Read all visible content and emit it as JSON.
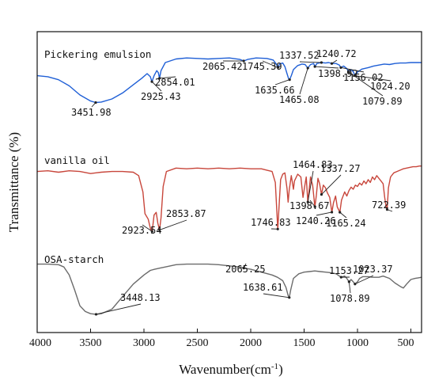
{
  "chart_data": {
    "type": "line",
    "xlabel": "Wavenumber(cm",
    "xlabel_sup": "-1",
    "xlabel_suffix": ")",
    "ylabel": "Transmittance (%)",
    "xlim": [
      4000,
      400
    ],
    "x_reversed": true,
    "x_ticks": [
      4000,
      3500,
      3000,
      2500,
      2000,
      1500,
      1000,
      500
    ],
    "y_ticks_shown": false,
    "series": [
      {
        "name": "Pickering emulsion",
        "color": "#1f5fd6",
        "points": [
          [
            4000,
            0.4
          ],
          [
            3900,
            0.42
          ],
          [
            3800,
            0.48
          ],
          [
            3700,
            0.6
          ],
          [
            3600,
            0.78
          ],
          [
            3500,
            0.9
          ],
          [
            3452,
            0.93
          ],
          [
            3400,
            0.92
          ],
          [
            3300,
            0.86
          ],
          [
            3200,
            0.74
          ],
          [
            3100,
            0.58
          ],
          [
            3020,
            0.45
          ],
          [
            2970,
            0.36
          ],
          [
            2940,
            0.42
          ],
          [
            2925,
            0.52
          ],
          [
            2905,
            0.4
          ],
          [
            2880,
            0.3
          ],
          [
            2865,
            0.34
          ],
          [
            2854,
            0.45
          ],
          [
            2840,
            0.3
          ],
          [
            2800,
            0.14
          ],
          [
            2700,
            0.07
          ],
          [
            2600,
            0.05
          ],
          [
            2500,
            0.06
          ],
          [
            2400,
            0.07
          ],
          [
            2300,
            0.06
          ],
          [
            2200,
            0.05
          ],
          [
            2100,
            0.08
          ],
          [
            2065,
            0.11
          ],
          [
            2030,
            0.08
          ],
          [
            1950,
            0.05
          ],
          [
            1850,
            0.06
          ],
          [
            1790,
            0.09
          ],
          [
            1760,
            0.17
          ],
          [
            1745,
            0.24
          ],
          [
            1730,
            0.17
          ],
          [
            1700,
            0.15
          ],
          [
            1680,
            0.22
          ],
          [
            1660,
            0.36
          ],
          [
            1645,
            0.46
          ],
          [
            1636,
            0.48
          ],
          [
            1620,
            0.4
          ],
          [
            1600,
            0.28
          ],
          [
            1560,
            0.2
          ],
          [
            1520,
            0.17
          ],
          [
            1490,
            0.18
          ],
          [
            1465,
            0.25
          ],
          [
            1440,
            0.18
          ],
          [
            1410,
            0.16
          ],
          [
            1399,
            0.22
          ],
          [
            1380,
            0.16
          ],
          [
            1338,
            0.14
          ],
          [
            1300,
            0.15
          ],
          [
            1270,
            0.14
          ],
          [
            1241,
            0.16
          ],
          [
            1200,
            0.16
          ],
          [
            1170,
            0.19
          ],
          [
            1156,
            0.24
          ],
          [
            1130,
            0.21
          ],
          [
            1100,
            0.26
          ],
          [
            1080,
            0.33
          ],
          [
            1060,
            0.28
          ],
          [
            1040,
            0.32
          ],
          [
            1024,
            0.4
          ],
          [
            1000,
            0.33
          ],
          [
            960,
            0.27
          ],
          [
            900,
            0.24
          ],
          [
            850,
            0.21
          ],
          [
            800,
            0.19
          ],
          [
            750,
            0.17
          ],
          [
            700,
            0.18
          ],
          [
            650,
            0.16
          ],
          [
            600,
            0.15
          ],
          [
            550,
            0.15
          ],
          [
            500,
            0.14
          ],
          [
            450,
            0.14
          ],
          [
            400,
            0.14
          ]
        ]
      },
      {
        "name": "vanilla oil",
        "color": "#c8463b",
        "points": [
          [
            4000,
            0.1
          ],
          [
            3900,
            0.09
          ],
          [
            3800,
            0.11
          ],
          [
            3700,
            0.09
          ],
          [
            3600,
            0.1
          ],
          [
            3500,
            0.13
          ],
          [
            3450,
            0.12
          ],
          [
            3400,
            0.11
          ],
          [
            3300,
            0.1
          ],
          [
            3200,
            0.1
          ],
          [
            3100,
            0.11
          ],
          [
            3050,
            0.16
          ],
          [
            3010,
            0.4
          ],
          [
            2990,
            0.72
          ],
          [
            2960,
            0.8
          ],
          [
            2945,
            0.9
          ],
          [
            2935,
            0.96
          ],
          [
            2923,
            0.98
          ],
          [
            2905,
            0.74
          ],
          [
            2885,
            0.7
          ],
          [
            2870,
            0.86
          ],
          [
            2854,
            0.96
          ],
          [
            2840,
            0.78
          ],
          [
            2820,
            0.32
          ],
          [
            2790,
            0.1
          ],
          [
            2700,
            0.05
          ],
          [
            2600,
            0.06
          ],
          [
            2500,
            0.05
          ],
          [
            2400,
            0.06
          ],
          [
            2300,
            0.05
          ],
          [
            2200,
            0.06
          ],
          [
            2100,
            0.05
          ],
          [
            2000,
            0.06
          ],
          [
            1900,
            0.06
          ],
          [
            1850,
            0.08
          ],
          [
            1800,
            0.1
          ],
          [
            1770,
            0.26
          ],
          [
            1755,
            0.7
          ],
          [
            1747,
            0.95
          ],
          [
            1738,
            0.7
          ],
          [
            1720,
            0.22
          ],
          [
            1700,
            0.14
          ],
          [
            1680,
            0.12
          ],
          [
            1660,
            0.35
          ],
          [
            1650,
            0.55
          ],
          [
            1640,
            0.38
          ],
          [
            1620,
            0.16
          ],
          [
            1600,
            0.36
          ],
          [
            1590,
            0.24
          ],
          [
            1560,
            0.14
          ],
          [
            1530,
            0.18
          ],
          [
            1510,
            0.48
          ],
          [
            1495,
            0.32
          ],
          [
            1480,
            0.18
          ],
          [
            1465,
            0.55
          ],
          [
            1455,
            0.4
          ],
          [
            1440,
            0.18
          ],
          [
            1420,
            0.3
          ],
          [
            1399,
            0.62
          ],
          [
            1385,
            0.45
          ],
          [
            1370,
            0.2
          ],
          [
            1355,
            0.28
          ],
          [
            1337,
            0.44
          ],
          [
            1320,
            0.3
          ],
          [
            1300,
            0.34
          ],
          [
            1280,
            0.42
          ],
          [
            1260,
            0.48
          ],
          [
            1240,
            0.7
          ],
          [
            1225,
            0.56
          ],
          [
            1205,
            0.46
          ],
          [
            1190,
            0.62
          ],
          [
            1165,
            0.7
          ],
          [
            1150,
            0.52
          ],
          [
            1120,
            0.4
          ],
          [
            1100,
            0.46
          ],
          [
            1080,
            0.38
          ],
          [
            1060,
            0.33
          ],
          [
            1040,
            0.36
          ],
          [
            1020,
            0.3
          ],
          [
            1000,
            0.32
          ],
          [
            980,
            0.27
          ],
          [
            960,
            0.3
          ],
          [
            940,
            0.24
          ],
          [
            920,
            0.28
          ],
          [
            900,
            0.22
          ],
          [
            880,
            0.26
          ],
          [
            860,
            0.18
          ],
          [
            840,
            0.22
          ],
          [
            820,
            0.16
          ],
          [
            800,
            0.2
          ],
          [
            780,
            0.24
          ],
          [
            760,
            0.28
          ],
          [
            745,
            0.48
          ],
          [
            732,
            0.62
          ],
          [
            722,
            0.66
          ],
          [
            710,
            0.34
          ],
          [
            690,
            0.18
          ],
          [
            660,
            0.12
          ],
          [
            630,
            0.1
          ],
          [
            600,
            0.08
          ],
          [
            570,
            0.06
          ],
          [
            540,
            0.05
          ],
          [
            510,
            0.04
          ],
          [
            480,
            0.03
          ],
          [
            450,
            0.03
          ],
          [
            420,
            0.02
          ],
          [
            400,
            0.02
          ]
        ]
      },
      {
        "name": "OSA-starch",
        "color": "#6b6b6b",
        "points": [
          [
            4000,
            0.05
          ],
          [
            3900,
            0.05
          ],
          [
            3800,
            0.06
          ],
          [
            3750,
            0.1
          ],
          [
            3700,
            0.24
          ],
          [
            3650,
            0.5
          ],
          [
            3600,
            0.78
          ],
          [
            3550,
            0.88
          ],
          [
            3500,
            0.92
          ],
          [
            3448,
            0.93
          ],
          [
            3400,
            0.92
          ],
          [
            3300,
            0.84
          ],
          [
            3200,
            0.62
          ],
          [
            3100,
            0.4
          ],
          [
            3000,
            0.24
          ],
          [
            2940,
            0.16
          ],
          [
            2900,
            0.14
          ],
          [
            2850,
            0.12
          ],
          [
            2800,
            0.1
          ],
          [
            2700,
            0.06
          ],
          [
            2600,
            0.05
          ],
          [
            2500,
            0.05
          ],
          [
            2400,
            0.05
          ],
          [
            2300,
            0.06
          ],
          [
            2200,
            0.08
          ],
          [
            2100,
            0.1
          ],
          [
            2065,
            0.12
          ],
          [
            2000,
            0.14
          ],
          [
            1900,
            0.19
          ],
          [
            1800,
            0.24
          ],
          [
            1750,
            0.28
          ],
          [
            1700,
            0.34
          ],
          [
            1670,
            0.46
          ],
          [
            1650,
            0.6
          ],
          [
            1639,
            0.64
          ],
          [
            1625,
            0.5
          ],
          [
            1600,
            0.3
          ],
          [
            1550,
            0.22
          ],
          [
            1500,
            0.19
          ],
          [
            1450,
            0.18
          ],
          [
            1400,
            0.17
          ],
          [
            1350,
            0.18
          ],
          [
            1300,
            0.19
          ],
          [
            1250,
            0.2
          ],
          [
            1200,
            0.22
          ],
          [
            1153,
            0.28
          ],
          [
            1120,
            0.26
          ],
          [
            1100,
            0.3
          ],
          [
            1079,
            0.36
          ],
          [
            1060,
            0.32
          ],
          [
            1040,
            0.36
          ],
          [
            1023,
            0.4
          ],
          [
            1000,
            0.36
          ],
          [
            980,
            0.3
          ],
          [
            950,
            0.27
          ],
          [
            900,
            0.27
          ],
          [
            860,
            0.28
          ],
          [
            800,
            0.28
          ],
          [
            760,
            0.26
          ],
          [
            700,
            0.3
          ],
          [
            650,
            0.38
          ],
          [
            600,
            0.44
          ],
          [
            570,
            0.47
          ],
          [
            540,
            0.4
          ],
          [
            500,
            0.32
          ],
          [
            460,
            0.3
          ],
          [
            430,
            0.29
          ],
          [
            400,
            0.28
          ]
        ]
      }
    ],
    "annotations": [
      {
        "series": "Pickering emulsion",
        "label": "3451.98",
        "x": 3451.98
      },
      {
        "series": "Pickering emulsion",
        "label": "2925.43",
        "x": 2925.43
      },
      {
        "series": "Pickering emulsion",
        "label": "2854.01",
        "x": 2854.01
      },
      {
        "series": "Pickering emulsion",
        "label": "2065.42",
        "x": 2065.42
      },
      {
        "series": "Pickering emulsion",
        "label": "1745.39",
        "x": 1745.39
      },
      {
        "series": "Pickering emulsion",
        "label": "1635.66",
        "x": 1635.66
      },
      {
        "series": "Pickering emulsion",
        "label": "1465.08",
        "x": 1465.08
      },
      {
        "series": "Pickering emulsion",
        "label": "1398.92",
        "x": 1398.92
      },
      {
        "series": "Pickering emulsion",
        "label": "1337.52",
        "x": 1337.52
      },
      {
        "series": "Pickering emulsion",
        "label": "1240.72",
        "x": 1240.72
      },
      {
        "series": "Pickering emulsion",
        "label": "1156.02",
        "x": 1156.02
      },
      {
        "series": "Pickering emulsion",
        "label": "1079.89",
        "x": 1079.89
      },
      {
        "series": "Pickering emulsion",
        "label": "1024.20",
        "x": 1024.2
      },
      {
        "series": "vanilla oil",
        "label": "2923.54",
        "x": 2923.54
      },
      {
        "series": "vanilla oil",
        "label": "2853.87",
        "x": 2853.87
      },
      {
        "series": "vanilla oil",
        "label": "1746.83",
        "x": 1746.83
      },
      {
        "series": "vanilla oil",
        "label": "1464.83",
        "x": 1464.83
      },
      {
        "series": "vanilla oil",
        "label": "1398.67",
        "x": 1398.67
      },
      {
        "series": "vanilla oil",
        "label": "1337.27",
        "x": 1337.27
      },
      {
        "series": "vanilla oil",
        "label": "1240.26",
        "x": 1240.26
      },
      {
        "series": "vanilla oil",
        "label": "1165.24",
        "x": 1165.24
      },
      {
        "series": "vanilla oil",
        "label": "722.39",
        "x": 722.39
      },
      {
        "series": "OSA-starch",
        "label": "3448.13",
        "x": 3448.13
      },
      {
        "series": "OSA-starch",
        "label": "2065.25",
        "x": 2065.25
      },
      {
        "series": "OSA-starch",
        "label": "1638.61",
        "x": 1638.61
      },
      {
        "series": "OSA-starch",
        "label": "1153.27",
        "x": 1153.27
      },
      {
        "series": "OSA-starch",
        "label": "1078.89",
        "x": 1078.89
      },
      {
        "series": "OSA-starch",
        "label": "1023.37",
        "x": 1023.37
      }
    ]
  }
}
